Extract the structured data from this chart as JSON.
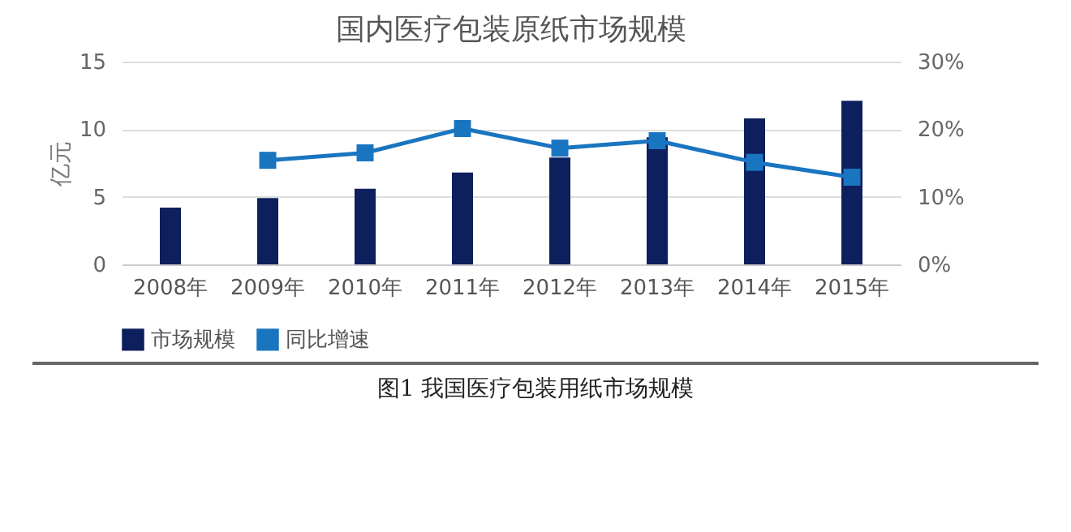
{
  "chart_data": {
    "type": "bar",
    "title": "国内医疗包装原纸市场规模",
    "ylabel": "亿元",
    "categories": [
      "2008年",
      "2009年",
      "2010年",
      "2011年",
      "2012年",
      "2013年",
      "2014年",
      "2015年"
    ],
    "series": [
      {
        "name": "市场规模",
        "color": "#0d1f5c",
        "values": [
          4.2,
          4.9,
          5.6,
          6.8,
          7.9,
          9.4,
          10.8,
          12.1
        ]
      },
      {
        "name": "同比增速",
        "type": "line",
        "axis": "y2",
        "color": "#1a75c0",
        "values": [
          null,
          15.4,
          16.5,
          20.1,
          17.2,
          18.3,
          15.1,
          12.9
        ]
      }
    ],
    "ylim": [
      0,
      15
    ],
    "yticks": [
      0,
      5,
      10,
      15
    ],
    "y2lim": [
      0,
      30
    ],
    "y2ticks": [
      {
        "value": 0,
        "label": "0%"
      },
      {
        "value": 10,
        "label": "10%"
      },
      {
        "value": 20,
        "label": "20%"
      },
      {
        "value": 30,
        "label": "30%"
      }
    ],
    "grid": "y",
    "legend": "bottom",
    "marker": "square",
    "line_style": "solid",
    "annotations": [
      "图1 我国医疗包装用纸市场规模"
    ]
  }
}
